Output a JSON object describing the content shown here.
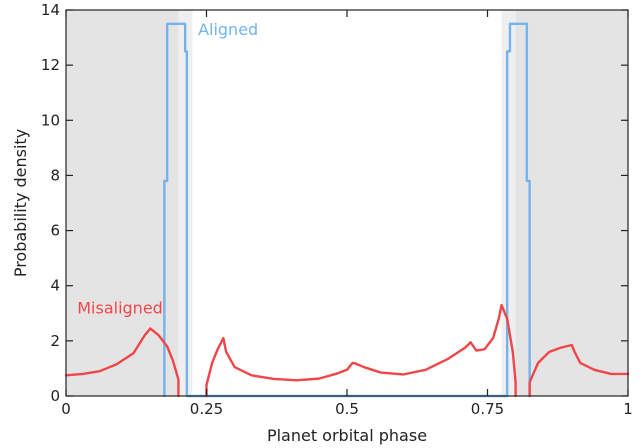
{
  "chart_data": {
    "type": "line",
    "xlabel": "Planet orbital phase",
    "ylabel": "Probability density",
    "xlim": [
      0,
      1
    ],
    "ylim": [
      0,
      14
    ],
    "x_ticks": [
      {
        "value": 0,
        "label": "0"
      },
      {
        "value": 0.25,
        "label": "0.25"
      },
      {
        "value": 0.5,
        "label": "0.5"
      },
      {
        "value": 0.75,
        "label": "0.75"
      },
      {
        "value": 1,
        "label": "1"
      }
    ],
    "y_ticks": [
      {
        "value": 0,
        "label": "0"
      },
      {
        "value": 2,
        "label": "2"
      },
      {
        "value": 4,
        "label": "4"
      },
      {
        "value": 6,
        "label": "6"
      },
      {
        "value": 8,
        "label": "8"
      },
      {
        "value": 10,
        "label": "10"
      },
      {
        "value": 12,
        "label": "12"
      },
      {
        "value": 14,
        "label": "14"
      }
    ],
    "grid": false,
    "shaded_regions": [
      {
        "x0": 0,
        "x1": 0.2,
        "color": "#e4e4e4"
      },
      {
        "x0": 0.2,
        "x1": 0.225,
        "color": "#efefef"
      },
      {
        "x0": 0.775,
        "x1": 0.8,
        "color": "#efefef"
      },
      {
        "x0": 0.8,
        "x1": 1,
        "color": "#e4e4e4"
      }
    ],
    "series": [
      {
        "name": "Aligned",
        "color": "#74b3ec",
        "label_anchor": {
          "x": 0.235,
          "y": 13.1
        },
        "x": [
          0.175,
          0.175,
          0.18,
          0.18,
          0.212,
          0.212,
          0.215,
          0.215,
          0.785,
          0.785,
          0.79,
          0.79,
          0.82,
          0.82,
          0.825,
          0.825
        ],
        "y": [
          0,
          7.8,
          7.8,
          13.5,
          13.5,
          12.5,
          12.5,
          0,
          0,
          12.5,
          12.5,
          13.5,
          13.5,
          7.8,
          7.8,
          0
        ]
      },
      {
        "name": "Misaligned",
        "color": "#f0464a",
        "label_anchor": {
          "x": 0.02,
          "y": 3.0
        },
        "x": [
          0,
          0.03,
          0.06,
          0.09,
          0.12,
          0.14,
          0.15,
          0.165,
          0.18,
          0.19,
          0.2,
          0.2,
          null,
          0.25,
          0.25,
          0.26,
          0.27,
          0.28,
          0.285,
          0.3,
          0.33,
          0.37,
          0.41,
          0.45,
          0.48,
          0.5,
          0.51,
          0.515,
          0.53,
          0.56,
          0.6,
          0.64,
          0.68,
          0.71,
          0.72,
          0.73,
          0.745,
          0.76,
          0.77,
          0.775,
          0.785,
          0.795,
          0.8,
          0.8,
          null,
          0.825,
          0.825,
          0.84,
          0.86,
          0.88,
          0.9,
          0.905,
          0.915,
          0.94,
          0.97,
          1.0
        ],
        "y": [
          0.75,
          0.8,
          0.9,
          1.15,
          1.55,
          2.2,
          2.45,
          2.2,
          1.8,
          1.3,
          0.6,
          0,
          null,
          0,
          0.4,
          1.2,
          1.7,
          2.1,
          1.6,
          1.05,
          0.75,
          0.62,
          0.57,
          0.63,
          0.8,
          0.95,
          1.2,
          1.18,
          1.05,
          0.85,
          0.78,
          0.95,
          1.35,
          1.75,
          1.95,
          1.65,
          1.7,
          2.1,
          2.8,
          3.3,
          2.8,
          1.6,
          0.5,
          0,
          null,
          0,
          0.5,
          1.2,
          1.6,
          1.75,
          1.85,
          1.6,
          1.2,
          0.95,
          0.8,
          0.8
        ]
      }
    ]
  }
}
